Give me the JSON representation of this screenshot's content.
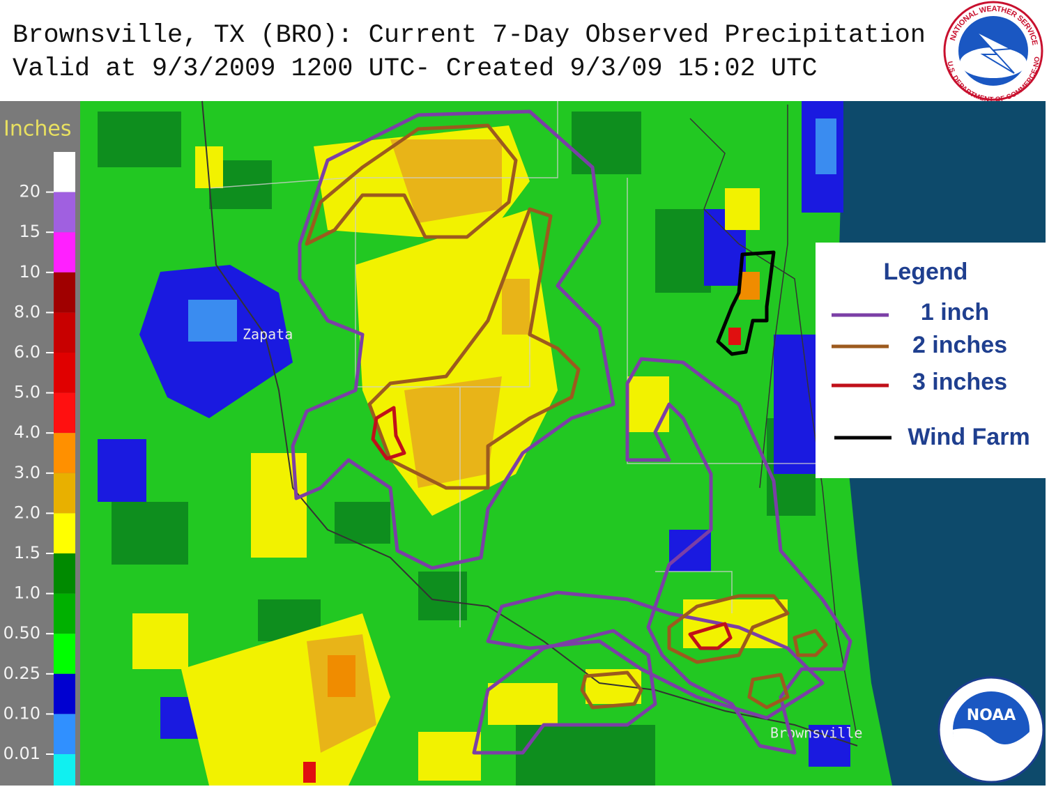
{
  "header": {
    "title_line1": "Brownsville, TX (BRO): Current 7-Day Observed Precipitation",
    "title_line2": "Valid at 9/3/2009 1200 UTC- Created 9/3/09 15:02 UTC"
  },
  "nws_logo": {
    "top_text": "NATIONAL WEATHER SERVICE",
    "bottom_text": "U.S. DEPARTMENT OF COMMERCE-NOAA"
  },
  "colorbar": {
    "title": "Inches",
    "labels": [
      "20",
      "15",
      "10",
      "8.0",
      "6.0",
      "5.0",
      "4.0",
      "3.0",
      "2.0",
      "1.5",
      "1.0",
      "0.50",
      "0.25",
      "0.10",
      "0.01"
    ]
  },
  "cities": [
    "Zapata",
    "Brownsville"
  ],
  "legend": {
    "title": "Legend",
    "items": [
      "1 inch",
      "2 inches",
      "3 inches",
      "Wind Farm"
    ]
  },
  "noaa_logo": {
    "text": "NOAA"
  }
}
